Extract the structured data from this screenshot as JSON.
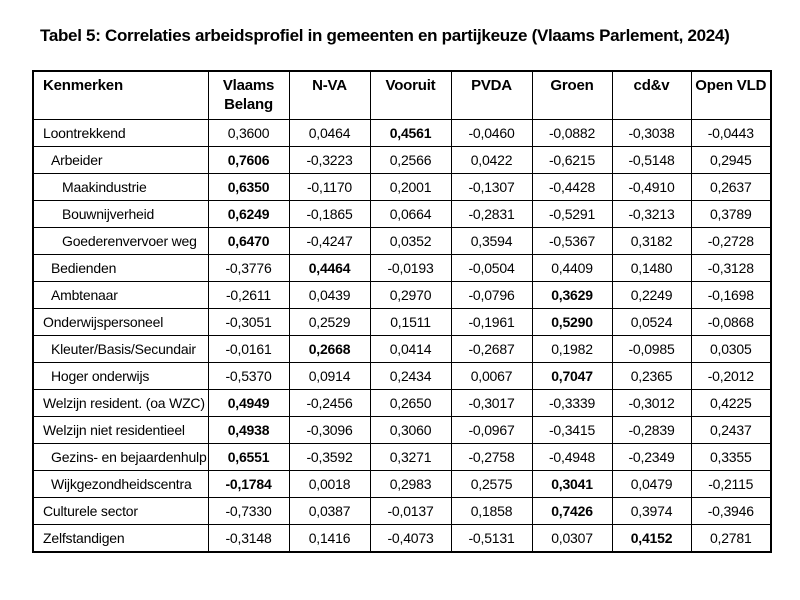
{
  "title": "Tabel 5: Correlaties arbeidsprofiel in gemeenten en partijkeuze (Vlaams Parlement, 2024)",
  "colors": {
    "text": "#000000",
    "border": "#000000",
    "background": "#ffffff"
  },
  "table": {
    "columns": [
      "Kenmerken",
      "Vlaams Belang",
      "N-VA",
      "Vooruit",
      "PVDA",
      "Groen",
      "cd&v",
      "Open VLD"
    ],
    "rows": [
      {
        "label": "Loontrekkend",
        "indent": 0,
        "values": [
          "0,3600",
          "0,0464",
          "0,4561",
          "-0,0460",
          "-0,0882",
          "-0,3038",
          "-0,0443"
        ],
        "bold": [
          2
        ]
      },
      {
        "label": "Arbeider",
        "indent": 1,
        "values": [
          "0,7606",
          "-0,3223",
          "0,2566",
          "0,0422",
          "-0,6215",
          "-0,5148",
          "0,2945"
        ],
        "bold": [
          0
        ]
      },
      {
        "label": "Maakindustrie",
        "indent": 2,
        "values": [
          "0,6350",
          "-0,1170",
          "0,2001",
          "-0,1307",
          "-0,4428",
          "-0,4910",
          "0,2637"
        ],
        "bold": [
          0
        ]
      },
      {
        "label": "Bouwnijverheid",
        "indent": 2,
        "values": [
          "0,6249",
          "-0,1865",
          "0,0664",
          "-0,2831",
          "-0,5291",
          "-0,3213",
          "0,3789"
        ],
        "bold": [
          0
        ]
      },
      {
        "label": "Goederenvervoer weg",
        "indent": 2,
        "values": [
          "0,6470",
          "-0,4247",
          "0,0352",
          "0,3594",
          "-0,5367",
          "0,3182",
          "-0,2728"
        ],
        "bold": [
          0
        ]
      },
      {
        "label": "Bedienden",
        "indent": 1,
        "values": [
          "-0,3776",
          "0,4464",
          "-0,0193",
          "-0,0504",
          "0,4409",
          "0,1480",
          "-0,3128"
        ],
        "bold": [
          1
        ]
      },
      {
        "label": "Ambtenaar",
        "indent": 1,
        "values": [
          "-0,2611",
          "0,0439",
          "0,2970",
          "-0,0796",
          "0,3629",
          "0,2249",
          "-0,1698"
        ],
        "bold": [
          4
        ]
      },
      {
        "label": "Onderwijspersoneel",
        "indent": 0,
        "values": [
          "-0,3051",
          "0,2529",
          "0,1511",
          "-0,1961",
          "0,5290",
          "0,0524",
          "-0,0868"
        ],
        "bold": [
          4
        ]
      },
      {
        "label": "Kleuter/Basis/Secundair",
        "indent": 1,
        "values": [
          "-0,0161",
          "0,2668",
          "0,0414",
          "-0,2687",
          "0,1982",
          "-0,0985",
          "0,0305"
        ],
        "bold": [
          1
        ]
      },
      {
        "label": "Hoger onderwijs",
        "indent": 1,
        "values": [
          "-0,5370",
          "0,0914",
          "0,2434",
          "0,0067",
          "0,7047",
          "0,2365",
          "-0,2012"
        ],
        "bold": [
          4
        ]
      },
      {
        "label": "Welzijn resident. (oa WZC)",
        "indent": 0,
        "values": [
          "0,4949",
          "-0,2456",
          "0,2650",
          "-0,3017",
          "-0,3339",
          "-0,3012",
          "0,4225"
        ],
        "bold": [
          0
        ]
      },
      {
        "label": "Welzijn niet residentieel",
        "indent": 0,
        "values": [
          "0,4938",
          "-0,3096",
          "0,3060",
          "-0,0967",
          "-0,3415",
          "-0,2839",
          "0,2437"
        ],
        "bold": [
          0
        ]
      },
      {
        "label": "Gezins- en bejaardenhulp",
        "indent": 1,
        "values": [
          "0,6551",
          "-0,3592",
          "0,3271",
          "-0,2758",
          "-0,4948",
          "-0,2349",
          "0,3355"
        ],
        "bold": [
          0
        ]
      },
      {
        "label": "Wijkgezondheidscentra",
        "indent": 1,
        "values": [
          "-0,1784",
          "0,0018",
          "0,2983",
          "0,2575",
          "0,3041",
          "0,0479",
          "-0,2115"
        ],
        "bold": [
          0,
          4
        ]
      },
      {
        "label": "Culturele sector",
        "indent": 0,
        "values": [
          "-0,7330",
          "0,0387",
          "-0,0137",
          "0,1858",
          "0,7426",
          "0,3974",
          "-0,3946"
        ],
        "bold": [
          4
        ]
      },
      {
        "label": "Zelfstandigen",
        "indent": 0,
        "values": [
          "-0,3148",
          "0,1416",
          "-0,4073",
          "-0,5131",
          "0,0307",
          "0,4152",
          "0,2781"
        ],
        "bold": [
          5
        ]
      }
    ]
  }
}
